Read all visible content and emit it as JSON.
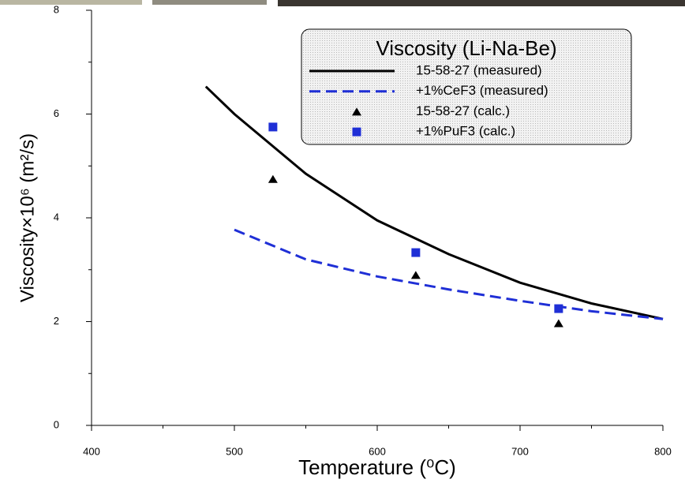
{
  "chart_data": {
    "type": "line",
    "x_label": "Temperature (⁰C)",
    "y_label": "Viscosity×10⁶ (m²/s)",
    "legend_title": "Viscosity (Li-Na-Be)",
    "legend": "upper right",
    "xlim": [
      400,
      800
    ],
    "xticks": [
      400,
      500,
      600,
      700,
      800
    ],
    "ylim": [
      0,
      8
    ],
    "yticks": [
      0,
      2,
      4,
      6,
      8
    ],
    "series": [
      {
        "name": "15-58-27 (measured)",
        "color": "#000000",
        "style": "solid",
        "marker": "none",
        "x": [
          480,
          500,
          550,
          600,
          650,
          700,
          750,
          800
        ],
        "values": [
          6.53,
          6.0,
          4.85,
          3.95,
          3.3,
          2.75,
          2.35,
          2.05
        ]
      },
      {
        "name": "+1%CeF3 (measured)",
        "color": "#1f2fd6",
        "style": "dashed",
        "marker": "none",
        "x": [
          500,
          550,
          600,
          650,
          700,
          750,
          800
        ],
        "values": [
          3.77,
          3.2,
          2.87,
          2.62,
          2.4,
          2.2,
          2.05
        ]
      },
      {
        "name": "15-58-27 (calc.)",
        "color": "#000000",
        "style": "none",
        "marker": "triangle",
        "x": [
          527,
          627,
          727
        ],
        "values": [
          4.75,
          2.9,
          1.97
        ]
      },
      {
        "name": "+1%PuF3 (calc.)",
        "color": "#1f2fd6",
        "style": "none",
        "marker": "square",
        "x": [
          527,
          627,
          727
        ],
        "values": [
          5.75,
          3.33,
          2.25
        ]
      }
    ]
  }
}
